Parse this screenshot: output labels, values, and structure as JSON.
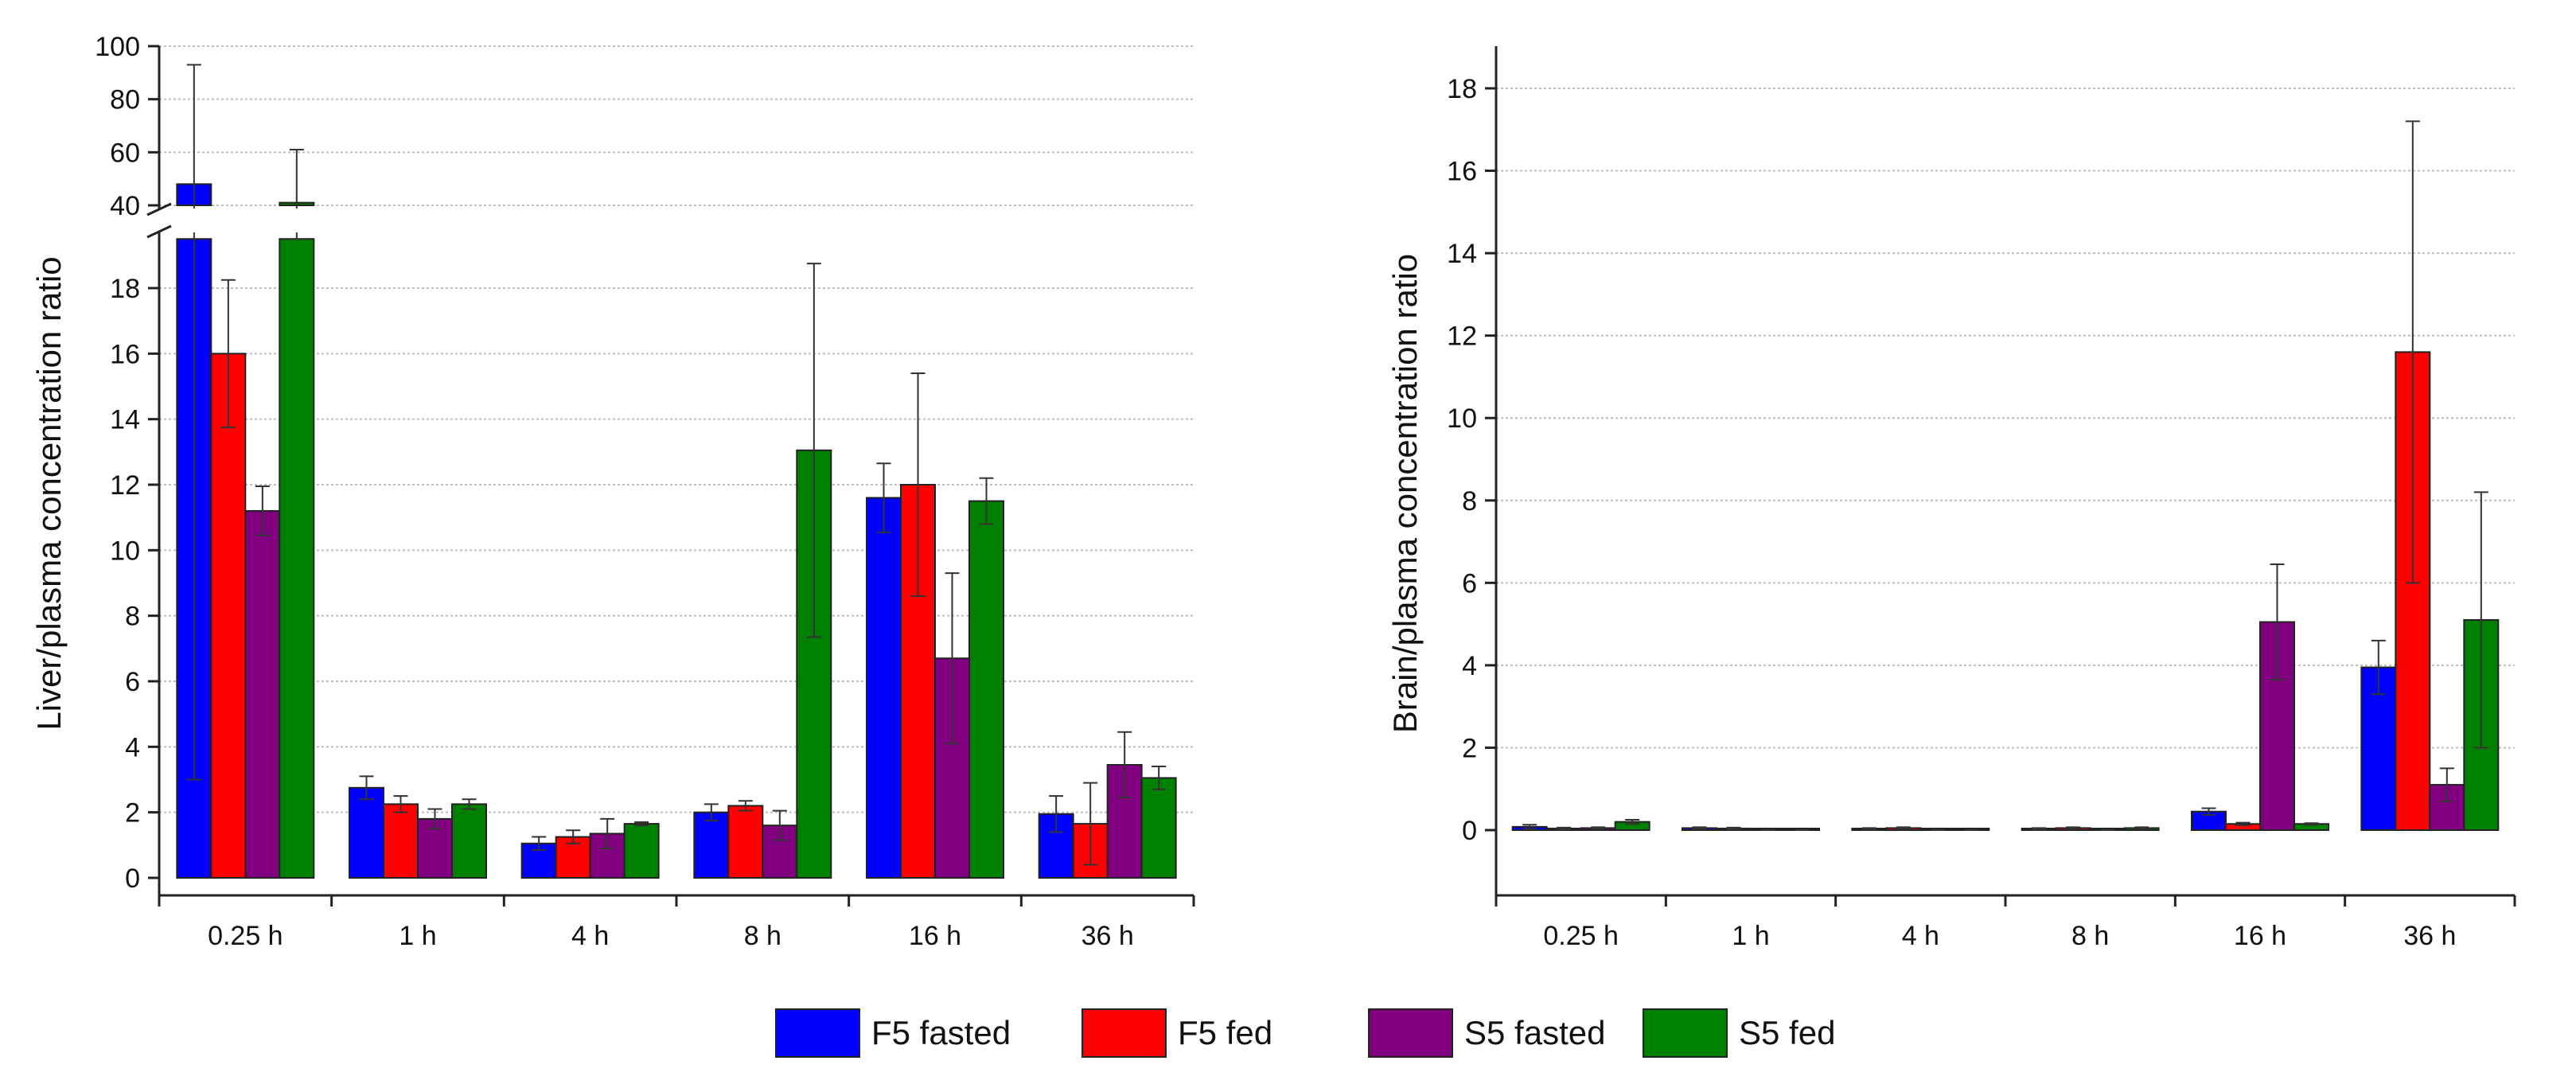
{
  "series_colors": {
    "F5 fasted": "#0000ff",
    "F5 fed": "#ff0000",
    "S5 fasted": "#800080",
    "S5 fed": "#008000"
  },
  "legend": {
    "items": [
      {
        "label": "F5 fasted",
        "color": "#0000ff"
      },
      {
        "label": "F5 fed",
        "color": "#ff0000"
      },
      {
        "label": "S5 fasted",
        "color": "#800080"
      },
      {
        "label": "S5 fed",
        "color": "#008000"
      }
    ]
  },
  "chart_data": [
    {
      "type": "bar",
      "title": "",
      "xlabel": "",
      "ylabel": "Liver/plasma concentration ratio",
      "categories": [
        "0.25 h",
        "1 h",
        "4 h",
        "8 h",
        "16 h",
        "36 h"
      ],
      "y_axis_break": {
        "lower_range": [
          -0.5,
          19.5
        ],
        "upper_range": [
          40,
          100
        ]
      },
      "yticks_lower": [
        "0",
        "2",
        "4",
        "6",
        "8",
        "10",
        "12",
        "14",
        "16",
        "18"
      ],
      "yticks_upper": [
        "40",
        "60",
        "80",
        "100"
      ],
      "grid": true,
      "series": [
        {
          "name": "F5 fasted",
          "values": [
            48,
            2.75,
            1.05,
            2.0,
            11.6,
            1.95
          ],
          "errors": [
            45,
            0.35,
            0.2,
            0.25,
            1.05,
            0.55
          ]
        },
        {
          "name": "F5 fed",
          "values": [
            16.0,
            2.25,
            1.25,
            2.2,
            12.0,
            1.65
          ],
          "errors": [
            2.25,
            0.25,
            0.2,
            0.15,
            3.4,
            1.25
          ]
        },
        {
          "name": "S5 fasted",
          "values": [
            11.2,
            1.8,
            1.35,
            1.6,
            6.7,
            3.45
          ],
          "errors": [
            0.75,
            0.3,
            0.45,
            0.45,
            2.6,
            1.0
          ]
        },
        {
          "name": "S5 fed",
          "values": [
            41,
            2.25,
            1.65,
            13.05,
            11.5,
            3.05
          ],
          "errors": [
            20,
            0.15,
            0.05,
            5.7,
            0.7,
            0.35
          ]
        }
      ]
    },
    {
      "type": "bar",
      "title": "",
      "xlabel": "",
      "ylabel": "Brain/plasma concentration ratio",
      "categories": [
        "0.25 h",
        "1 h",
        "4 h",
        "8 h",
        "16 h",
        "36 h"
      ],
      "ylim": [
        -1.5,
        19
      ],
      "yticks": [
        "0",
        "2",
        "4",
        "6",
        "8",
        "10",
        "12",
        "14",
        "16",
        "18"
      ],
      "grid": true,
      "series": [
        {
          "name": "F5 fasted",
          "values": [
            0.08,
            0.05,
            0.03,
            0.03,
            0.45,
            3.95
          ],
          "errors": [
            0.05,
            0.02,
            0.02,
            0.02,
            0.08,
            0.65
          ]
        },
        {
          "name": "F5 fed",
          "values": [
            0.04,
            0.04,
            0.05,
            0.05,
            0.15,
            11.6
          ],
          "errors": [
            0.02,
            0.02,
            0.02,
            0.02,
            0.03,
            5.6
          ]
        },
        {
          "name": "S5 fasted",
          "values": [
            0.05,
            0.0,
            0.0,
            0.0,
            5.05,
            1.1
          ],
          "errors": [
            0.02,
            0.01,
            0.01,
            0.01,
            1.4,
            0.4
          ]
        },
        {
          "name": "S5 fed",
          "values": [
            0.2,
            0.0,
            0.0,
            0.05,
            0.15,
            5.1
          ],
          "errors": [
            0.05,
            0.01,
            0.01,
            0.02,
            0.02,
            3.1
          ]
        }
      ]
    }
  ]
}
